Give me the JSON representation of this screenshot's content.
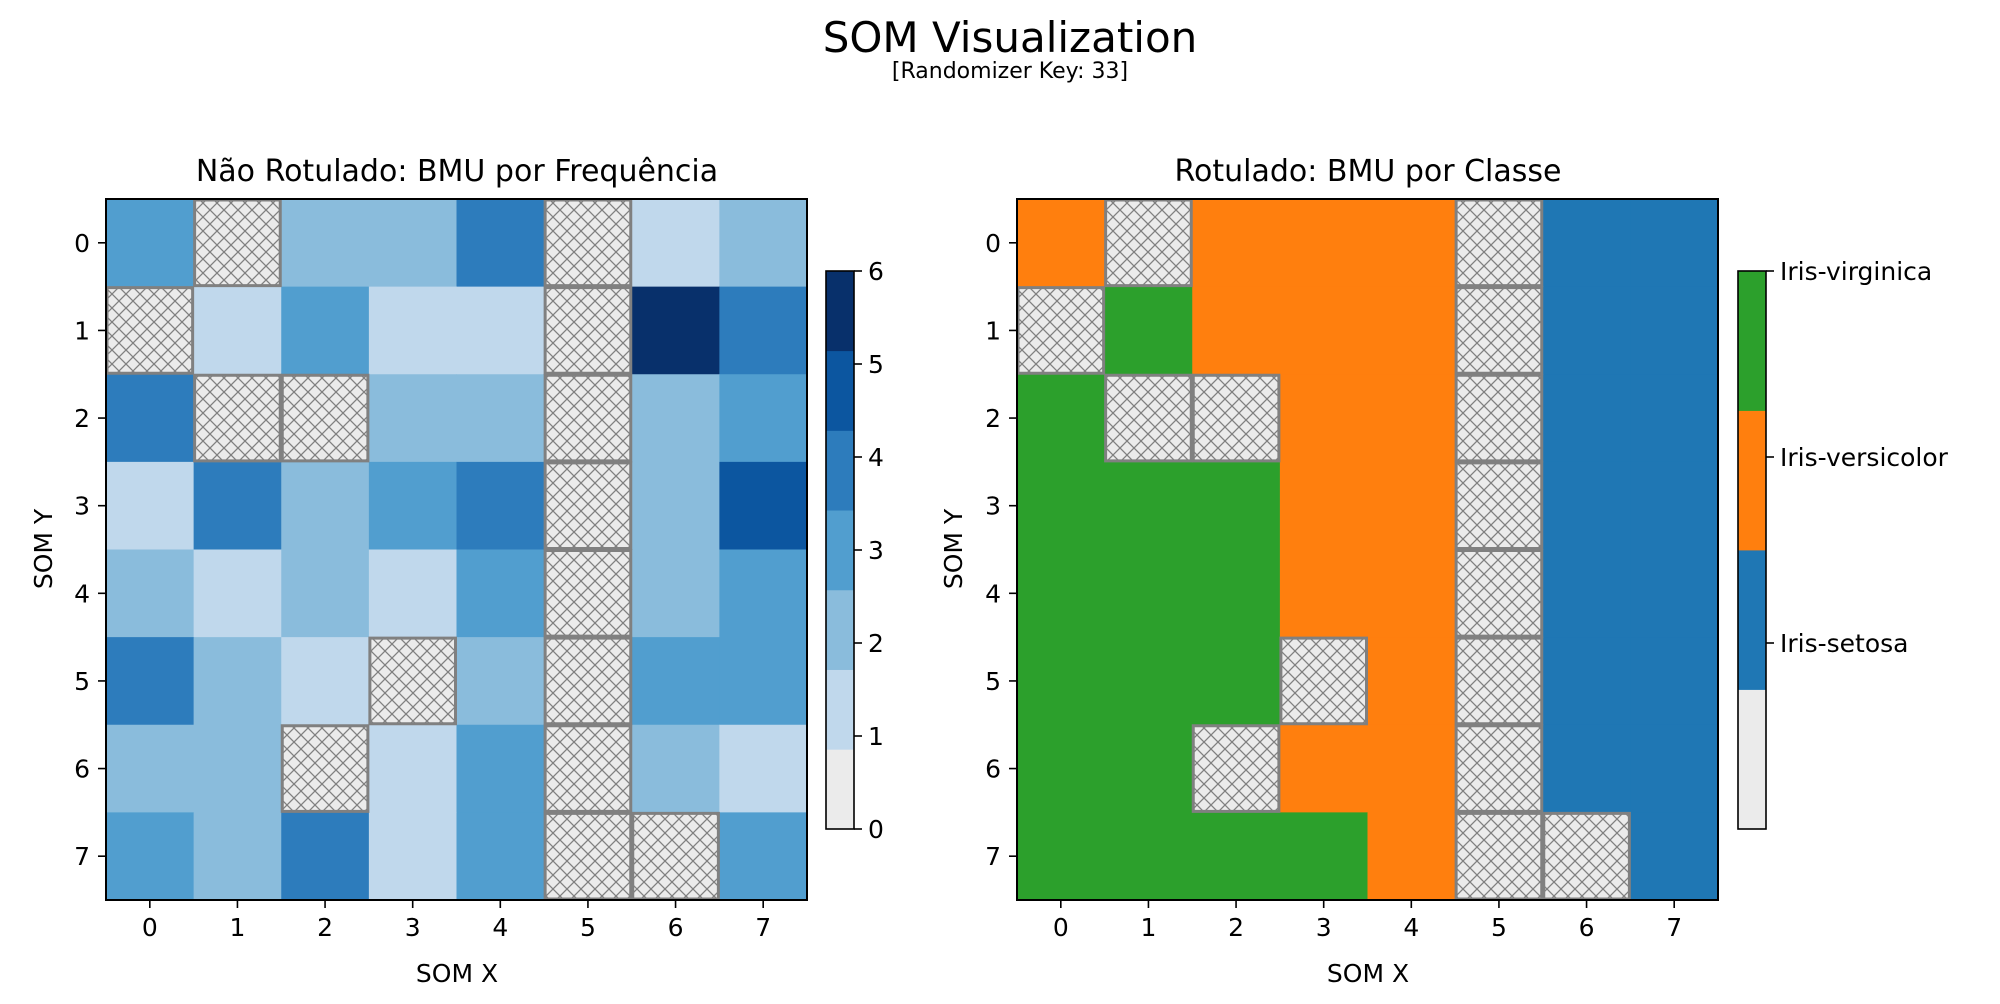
{
  "figure": {
    "title": "SOM Visualization",
    "subtitle": "[Randomizer Key: 33]"
  },
  "chart_data": [
    {
      "type": "heatmap",
      "title": "Não Rotulado: BMU por Frequência",
      "xlabel": "SOM X",
      "ylabel": "SOM Y",
      "x_ticks": [
        "0",
        "1",
        "2",
        "3",
        "4",
        "5",
        "6",
        "7"
      ],
      "y_ticks": [
        "0",
        "1",
        "2",
        "3",
        "4",
        "5",
        "6",
        "7"
      ],
      "empty_marker": "hatched",
      "grid": [
        [
          3,
          0,
          2,
          2,
          4,
          0,
          1,
          2
        ],
        [
          0,
          1,
          3,
          1,
          1,
          0,
          6,
          4
        ],
        [
          4,
          0,
          0,
          2,
          2,
          0,
          2,
          3
        ],
        [
          1,
          4,
          2,
          3,
          4,
          0,
          2,
          5
        ],
        [
          2,
          1,
          2,
          1,
          3,
          0,
          2,
          3
        ],
        [
          4,
          2,
          1,
          0,
          2,
          0,
          3,
          3
        ],
        [
          2,
          2,
          0,
          1,
          3,
          0,
          2,
          1
        ],
        [
          3,
          2,
          4,
          1,
          3,
          0,
          0,
          3
        ]
      ],
      "colorbar": {
        "range": [
          0,
          6
        ],
        "ticks": [
          "0",
          "1",
          "2",
          "3",
          "4",
          "5",
          "6"
        ],
        "colors": [
          "#ebebeb",
          "#c0d8ec",
          "#8abcdc",
          "#519ecf",
          "#2d7cbc",
          "#0c56a0",
          "#08306b"
        ]
      }
    },
    {
      "type": "heatmap",
      "title": "Rotulado: BMU por Classe",
      "xlabel": "SOM X",
      "ylabel": "SOM Y",
      "x_ticks": [
        "0",
        "1",
        "2",
        "3",
        "4",
        "5",
        "6",
        "7"
      ],
      "y_ticks": [
        "0",
        "1",
        "2",
        "3",
        "4",
        "5",
        "6",
        "7"
      ],
      "empty_marker": "hatched",
      "classes": [
        "",
        "Iris-setosa",
        "Iris-versicolor",
        "Iris-virginica"
      ],
      "grid": [
        [
          2,
          0,
          2,
          2,
          2,
          0,
          1,
          1
        ],
        [
          0,
          3,
          2,
          2,
          2,
          0,
          1,
          1
        ],
        [
          3,
          0,
          0,
          2,
          2,
          0,
          1,
          1
        ],
        [
          3,
          3,
          3,
          2,
          2,
          0,
          1,
          1
        ],
        [
          3,
          3,
          3,
          2,
          2,
          0,
          1,
          1
        ],
        [
          3,
          3,
          3,
          0,
          2,
          0,
          1,
          1
        ],
        [
          3,
          3,
          0,
          2,
          2,
          0,
          1,
          1
        ],
        [
          3,
          3,
          3,
          3,
          2,
          0,
          0,
          1
        ]
      ],
      "colorbar": {
        "labels": [
          "Iris-setosa",
          "Iris-versicolor",
          "Iris-virginica"
        ],
        "colors": [
          "#ebebeb",
          "#1f77b4",
          "#ff7f0e",
          "#2ca02c"
        ]
      }
    }
  ]
}
